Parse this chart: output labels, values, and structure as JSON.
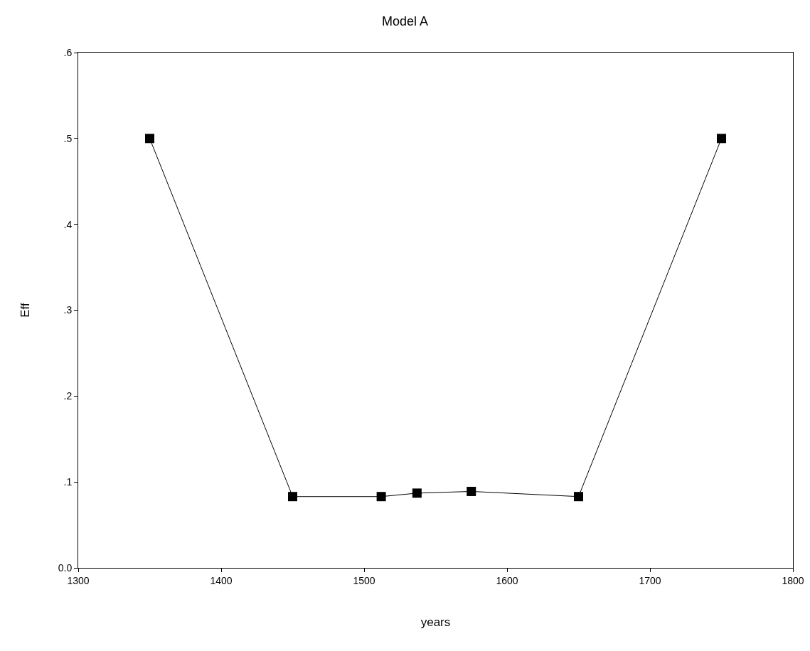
{
  "chart_data": {
    "type": "line",
    "title": "Model A",
    "xlabel": "years",
    "ylabel": "Eff",
    "x": [
      1350,
      1450,
      1512,
      1537,
      1575,
      1650,
      1750
    ],
    "series": [
      {
        "color": "#000000",
        "values": [
          0.5,
          0.083,
          0.083,
          0.087,
          0.089,
          0.083,
          0.5
        ]
      }
    ],
    "xlim": [
      1300,
      1800
    ],
    "xticks": [
      1300,
      1400,
      1500,
      1600,
      1700,
      1800
    ],
    "ylim": [
      0,
      0.6
    ],
    "yticks": [
      {
        "value": 0,
        "label": "0.0"
      },
      {
        "value": 0.1,
        "label": ".1"
      },
      {
        "value": 0.2,
        "label": ".2"
      },
      {
        "value": 0.3,
        "label": ".3"
      },
      {
        "value": 0.4,
        "label": ".4"
      },
      {
        "value": 0.5,
        "label": ".5"
      },
      {
        "value": 0.6,
        "label": ".6"
      }
    ],
    "grid": false,
    "legend": false,
    "marker": "square",
    "line_style": "solid"
  }
}
